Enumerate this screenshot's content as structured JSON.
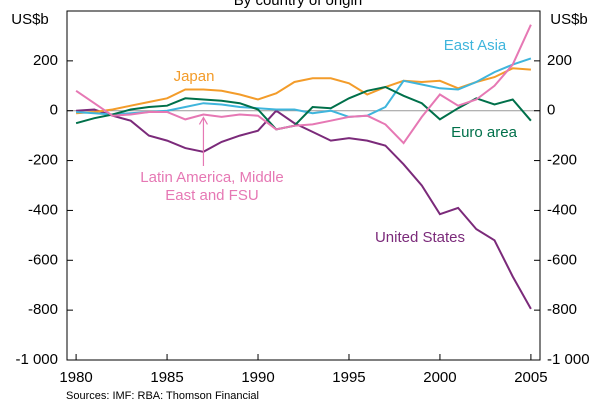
{
  "chart_data": {
    "type": "line",
    "subtitle": "By country of origin",
    "ylabel": "US$b",
    "y2label": "US$b",
    "source": "Sources: IMF: RBA: Thomson Financial",
    "x": [
      1980,
      1981,
      1982,
      1983,
      1984,
      1985,
      1986,
      1987,
      1988,
      1989,
      1990,
      1991,
      1992,
      1993,
      1994,
      1995,
      1996,
      1997,
      1998,
      1999,
      2000,
      2001,
      2002,
      2003,
      2004,
      2005
    ],
    "xlim": [
      1979.5,
      2005.5
    ],
    "xticks": [
      1980,
      1985,
      1990,
      1995,
      2000,
      2005
    ],
    "ylim": [
      -1000,
      400
    ],
    "yticks": [
      {
        "value": -1000,
        "label": "-1 000"
      },
      -800,
      -600,
      -400,
      -200,
      0,
      200
    ],
    "y2lim": [
      -1000,
      400
    ],
    "y2ticks": [
      {
        "value": -1000,
        "label": "-1 000"
      },
      -800,
      -600,
      -400,
      -200,
      0,
      200
    ],
    "series": [
      {
        "name": "United States",
        "color": "#7b2a7a",
        "values": [
          0,
          5,
          -20,
          -40,
          -100,
          -120,
          -150,
          -165,
          -125,
          -100,
          -80,
          0,
          -50,
          -85,
          -120,
          -110,
          -120,
          -140,
          -215,
          -300,
          -415,
          -390,
          -475,
          -520,
          -665,
          -795
        ]
      },
      {
        "name": "Japan",
        "color": "#f39c2a",
        "values": [
          -10,
          -5,
          5,
          20,
          35,
          50,
          85,
          85,
          80,
          65,
          45,
          70,
          115,
          130,
          130,
          110,
          65,
          95,
          120,
          115,
          120,
          90,
          115,
          135,
          170,
          165
        ]
      },
      {
        "name": "East Asia",
        "color": "#3fb5dc",
        "values": [
          -5,
          -10,
          -15,
          -10,
          -5,
          0,
          15,
          30,
          25,
          15,
          10,
          5,
          5,
          -10,
          0,
          -25,
          -20,
          15,
          120,
          105,
          90,
          85,
          115,
          155,
          185,
          210
        ]
      },
      {
        "name": "Euro area",
        "color": "#00704a",
        "values": [
          -50,
          -30,
          -15,
          5,
          15,
          20,
          50,
          45,
          40,
          30,
          5,
          -75,
          -60,
          15,
          10,
          50,
          80,
          95,
          60,
          30,
          -35,
          10,
          50,
          25,
          45,
          -40
        ]
      },
      {
        "name": "Latin America, Middle East and FSU",
        "label_lines": [
          "Latin America, Middle",
          "East and FSU"
        ],
        "color": "#e678b4",
        "values": [
          80,
          30,
          -20,
          -15,
          -5,
          -5,
          -35,
          -15,
          -25,
          -15,
          -20,
          -75,
          -60,
          -55,
          -40,
          -25,
          -20,
          -55,
          -130,
          -25,
          65,
          20,
          45,
          100,
          185,
          345
        ]
      }
    ]
  }
}
